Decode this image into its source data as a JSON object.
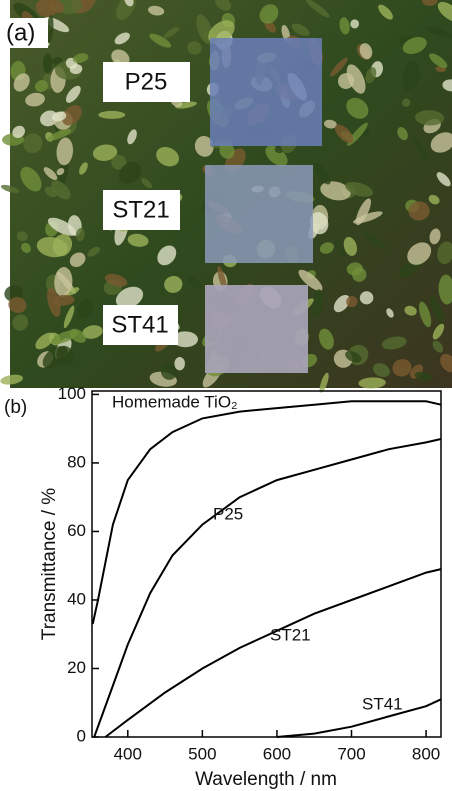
{
  "panel_a": {
    "label": "(a)",
    "labels": [
      "P25",
      "ST21",
      "ST41"
    ]
  },
  "chart_data": {
    "type": "line",
    "label": "(b)",
    "xlabel": "Wavelength / nm",
    "ylabel": "Transmittance / %",
    "xlim": [
      352,
      820
    ],
    "xticks": [
      400,
      500,
      600,
      700,
      800
    ],
    "ylim": [
      0,
      101
    ],
    "yticks": [
      0,
      20,
      40,
      60,
      80,
      100
    ],
    "series": [
      {
        "name": "Homemade TiO₂",
        "color": "#000000",
        "x": [
          353,
          360,
          380,
          400,
          430,
          460,
          500,
          550,
          600,
          650,
          700,
          750,
          800,
          820
        ],
        "values": [
          33,
          40,
          62,
          75,
          84,
          89,
          93,
          95,
          96,
          97,
          98,
          98,
          98,
          97
        ]
      },
      {
        "name": "P25",
        "color": "#000000",
        "x": [
          355,
          380,
          400,
          430,
          460,
          500,
          550,
          600,
          650,
          700,
          750,
          800,
          820
        ],
        "values": [
          0,
          15,
          27,
          42,
          53,
          62,
          70,
          75,
          78,
          81,
          84,
          86,
          87
        ]
      },
      {
        "name": "ST21",
        "color": "#000000",
        "x": [
          370,
          400,
          450,
          500,
          550,
          600,
          650,
          700,
          750,
          800,
          820
        ],
        "values": [
          0,
          5,
          13,
          20,
          26,
          31,
          36,
          40,
          44,
          48,
          49
        ]
      },
      {
        "name": "ST41",
        "color": "#000000",
        "x": [
          600,
          650,
          700,
          750,
          800,
          820
        ],
        "values": [
          0,
          1,
          3,
          6,
          9,
          11
        ]
      }
    ]
  }
}
